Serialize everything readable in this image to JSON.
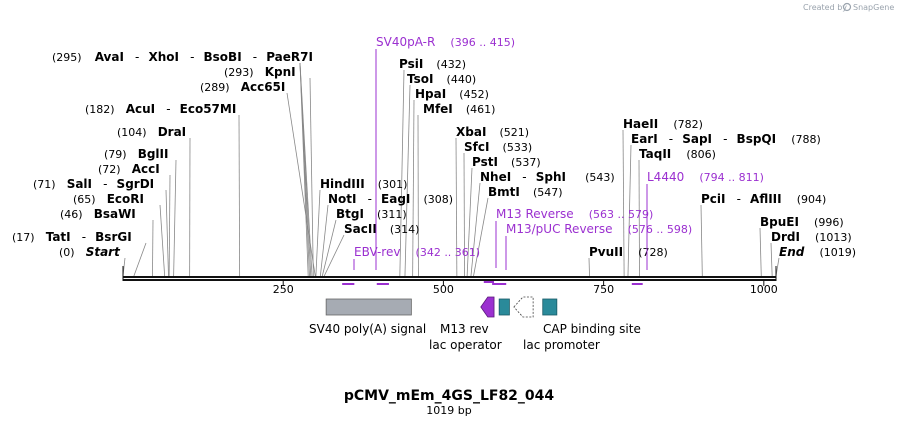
{
  "credit": {
    "prefix": "Created by",
    "brand": "SnapGene"
  },
  "map": {
    "title": "pCMV_mEm_4GS_LF82_044",
    "length_label": "1019 bp",
    "length_bp": 1019
  },
  "ticks": [
    {
      "bp": 250,
      "label": "250"
    },
    {
      "bp": 500,
      "label": "500"
    },
    {
      "bp": 750,
      "label": "750"
    },
    {
      "bp": 1000,
      "label": "1000"
    }
  ],
  "sites": [
    {
      "pos": "(295)",
      "names": [
        "AvaI",
        "XhoI",
        "BsoBI",
        "PaeR7I"
      ],
      "cut": [
        289,
        291,
        293,
        295
      ]
    },
    {
      "pos": "(293)",
      "names": [
        "KpnI"
      ],
      "cut": [
        297
      ]
    },
    {
      "pos": "(289)",
      "names": [
        "Acc65I"
      ],
      "cut": [
        300
      ]
    },
    {
      "pos": "(182)",
      "names": [
        "AcuI",
        "Eco57MI"
      ],
      "cut": [
        182
      ]
    },
    {
      "pos": "(104)",
      "names": [
        "DraI"
      ],
      "cut": [
        104
      ]
    },
    {
      "pos": "(79)",
      "names": [
        "BglII"
      ],
      "cut": [
        79
      ]
    },
    {
      "pos": "(72)",
      "names": [
        "AccI"
      ],
      "cut": [
        72
      ]
    },
    {
      "pos": "(71)",
      "names": [
        "SalI",
        "SgrDI"
      ],
      "cut": [
        71
      ]
    },
    {
      "pos": "(65)",
      "names": [
        "EcoRI"
      ],
      "cut": [
        65
      ]
    },
    {
      "pos": "(46)",
      "names": [
        "BsaWI"
      ],
      "cut": [
        46
      ]
    },
    {
      "pos": "(17)",
      "names": [
        "TatI",
        "BsrGI"
      ],
      "cut": [
        17
      ]
    },
    {
      "pos": "(0)",
      "names": [
        "Start"
      ],
      "cut": [
        0
      ],
      "italic": true
    },
    {
      "pos": "(432)",
      "names": [
        "PsiI"
      ],
      "cut": [
        432
      ]
    },
    {
      "pos": "(440)",
      "names": [
        "TsoI"
      ],
      "cut": [
        440
      ]
    },
    {
      "pos": "(452)",
      "names": [
        "HpaI"
      ],
      "cut": [
        452
      ]
    },
    {
      "pos": "(461)",
      "names": [
        "MfeI"
      ],
      "cut": [
        461
      ]
    },
    {
      "pos": "(301)",
      "names": [
        "HindIII"
      ],
      "cut": [
        301
      ]
    },
    {
      "pos": "(308)",
      "names": [
        "NotI",
        "EagI"
      ],
      "cut": [
        308
      ]
    },
    {
      "pos": "(311)",
      "names": [
        "BtgI"
      ],
      "cut": [
        311
      ]
    },
    {
      "pos": "(314)",
      "names": [
        "SacII"
      ],
      "cut": [
        314
      ]
    },
    {
      "pos": "(521)",
      "names": [
        "XbaI"
      ],
      "cut": [
        521
      ]
    },
    {
      "pos": "(533)",
      "names": [
        "SfcI"
      ],
      "cut": [
        533
      ]
    },
    {
      "pos": "(537)",
      "names": [
        "PstI"
      ],
      "cut": [
        537
      ]
    },
    {
      "pos": "(543)",
      "names": [
        "NheI",
        "SphI"
      ],
      "cut": [
        543
      ]
    },
    {
      "pos": "(547)",
      "names": [
        "BmtI"
      ],
      "cut": [
        547
      ]
    },
    {
      "pos": "(782)",
      "names": [
        "HaeII"
      ],
      "cut": [
        782
      ]
    },
    {
      "pos": "(788)",
      "names": [
        "EarI",
        "SapI",
        "BspQI"
      ],
      "cut": [
        788
      ]
    },
    {
      "pos": "(806)",
      "names": [
        "TaqII"
      ],
      "cut": [
        806
      ]
    },
    {
      "pos": "(728)",
      "names": [
        "PvuII"
      ],
      "cut": [
        728
      ]
    },
    {
      "pos": "(904)",
      "names": [
        "PciI",
        "AflIII"
      ],
      "cut": [
        904
      ]
    },
    {
      "pos": "(996)",
      "names": [
        "BpuEI"
      ],
      "cut": [
        996
      ]
    },
    {
      "pos": "(1013)",
      "names": [
        "DrdI"
      ],
      "cut": [
        1013
      ]
    },
    {
      "pos": "(1019)",
      "names": [
        "End"
      ],
      "cut": [
        1019
      ],
      "italic": true
    }
  ],
  "primers": [
    {
      "name": "SV40pA-R",
      "range": "(396 .. 415)",
      "start": 396,
      "end": 415
    },
    {
      "name": "L4440",
      "range": "(794 .. 811)",
      "start": 794,
      "end": 811
    },
    {
      "name": "M13 Reverse",
      "range": "(563 .. 579)",
      "start": 563,
      "end": 579
    },
    {
      "name": "M13/pUC Reverse",
      "range": "(576 .. 598)",
      "start": 576,
      "end": 598
    },
    {
      "name": "EBV-rev",
      "range": "(342 .. 361)",
      "start": 342,
      "end": 361
    }
  ],
  "features": [
    {
      "name": "SV40 poly(A) signal",
      "start": 317,
      "end": 450,
      "color": "#a6abb3"
    },
    {
      "name": "M13 rev",
      "start": 563,
      "end": 579,
      "color": "#9b30d0"
    },
    {
      "name": "lac operator",
      "start": 587,
      "end": 603,
      "color": "#2a8a9a"
    },
    {
      "name": "lac promoter",
      "start": 610,
      "end": 640,
      "color": "#ffffff"
    },
    {
      "name": "CAP binding site",
      "start": 655,
      "end": 677,
      "color": "#2a8a9a"
    }
  ],
  "colors": {
    "primer": "#9b30d0",
    "backbone": "#111111",
    "cutline": "#888888"
  }
}
